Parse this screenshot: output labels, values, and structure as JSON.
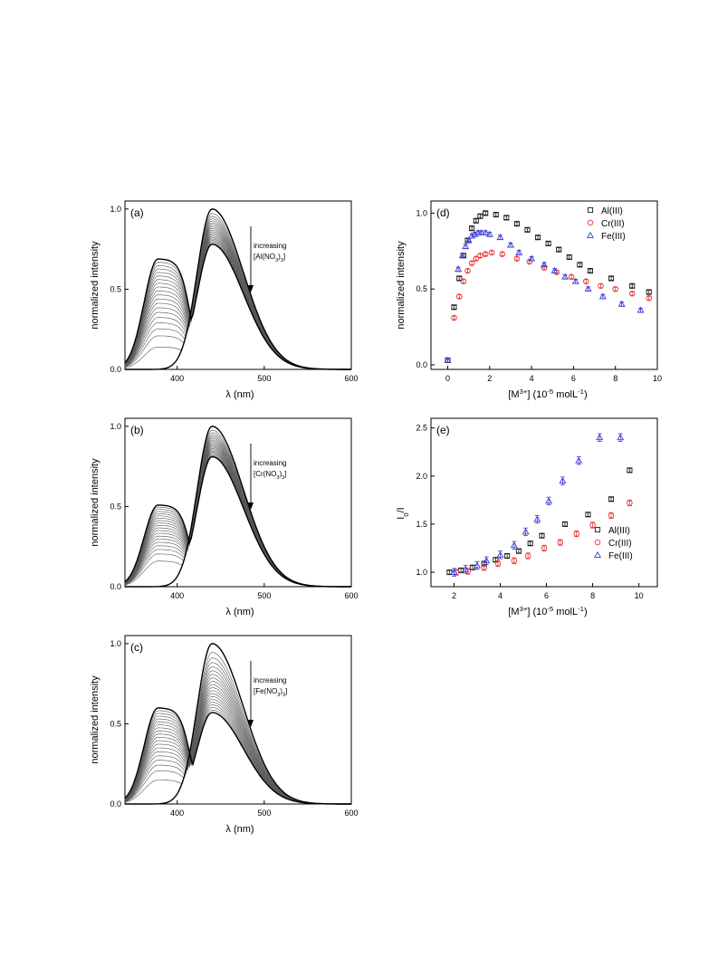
{
  "chart_data": [
    {
      "id": "a",
      "type": "line",
      "panel_label": "(a)",
      "xlabel": "λ (nm)",
      "ylabel": "normalized intensity",
      "xlim": [
        340,
        600
      ],
      "ylim": [
        0,
        1.05
      ],
      "xticks": [
        400,
        500,
        600
      ],
      "yticks": [
        0.0,
        0.5,
        1.0
      ],
      "xtick_labels": [
        "400",
        "500",
        "600"
      ],
      "ytick_labels": [
        "0.0",
        "0.5",
        "1.0"
      ],
      "annotation_line1": "increasing",
      "annotation_line2": "[Al(NO3)3]",
      "annotation_salt": "Al",
      "family": {
        "count": 20,
        "first_shoulder": 0.14,
        "last_shoulder": 0.69,
        "first_peak": 1.0,
        "last_peak": 0.78,
        "crossover_nm": 428
      },
      "bold_curves": [
        {
          "shoulder": 0.0,
          "peak": 1.0
        },
        {
          "shoulder": 0.69,
          "peak": 0.78
        }
      ]
    },
    {
      "id": "b",
      "type": "line",
      "panel_label": "(b)",
      "xlabel": "λ (nm)",
      "ylabel": "normalized intensity",
      "xlim": [
        340,
        600
      ],
      "ylim": [
        0,
        1.05
      ],
      "xticks": [
        400,
        500,
        600
      ],
      "yticks": [
        0.0,
        0.5,
        1.0
      ],
      "xtick_labels": [
        "400",
        "500",
        "600"
      ],
      "ytick_labels": [
        "0.0",
        "0.5",
        "1.0"
      ],
      "annotation_line1": "increasing",
      "annotation_line2": "[Cr(NO3)3]",
      "annotation_salt": "Cr",
      "family": {
        "count": 20,
        "first_shoulder": 0.16,
        "last_shoulder": 0.51,
        "first_peak": 1.0,
        "last_peak": 0.81,
        "crossover_nm": 428
      },
      "bold_curves": [
        {
          "shoulder": 0.0,
          "peak": 1.0
        },
        {
          "shoulder": 0.51,
          "peak": 0.81
        }
      ]
    },
    {
      "id": "c",
      "type": "line",
      "panel_label": "(c)",
      "xlabel": "λ (nm)",
      "ylabel": "normalized intensity",
      "xlim": [
        340,
        600
      ],
      "ylim": [
        0,
        1.05
      ],
      "xticks": [
        400,
        500,
        600
      ],
      "yticks": [
        0.0,
        0.5,
        1.0
      ],
      "xtick_labels": [
        "400",
        "500",
        "600"
      ],
      "ytick_labels": [
        "0.0",
        "0.5",
        "1.0"
      ],
      "annotation_line1": "increasing",
      "annotation_line2": "[Fe(NO3)3]",
      "annotation_salt": "Fe",
      "family": {
        "count": 20,
        "first_shoulder": 0.15,
        "last_shoulder": 0.6,
        "first_peak": 1.0,
        "last_peak": 0.57,
        "crossover_nm": 430
      },
      "bold_curves": [
        {
          "shoulder": 0.0,
          "peak": 1.0
        },
        {
          "shoulder": 0.6,
          "peak": 0.57
        }
      ]
    },
    {
      "id": "d",
      "type": "scatter",
      "panel_label": "(d)",
      "xlabel": "[M3+] (10-5 molL-1)",
      "ylabel": "normalized intensity",
      "xlim": [
        -0.8,
        10
      ],
      "ylim": [
        -0.03,
        1.08
      ],
      "xticks": [
        0,
        2,
        4,
        6,
        8,
        10
      ],
      "yticks": [
        0.0,
        0.5,
        1.0
      ],
      "xtick_labels": [
        "0",
        "2",
        "4",
        "6",
        "8",
        "10"
      ],
      "ytick_labels": [
        "0.0",
        "0.5",
        "1.0"
      ],
      "legend_position": "top-right",
      "series": [
        {
          "name": "Al(III)",
          "marker": "square",
          "color": "#1a1a1a",
          "err": 0.012,
          "x": [
            0,
            0.3,
            0.55,
            0.75,
            0.95,
            1.15,
            1.35,
            1.55,
            1.8,
            2.3,
            2.8,
            3.3,
            3.8,
            4.3,
            4.8,
            5.3,
            5.8,
            6.3,
            6.8,
            7.8,
            8.8,
            9.6
          ],
          "y": [
            0.03,
            0.38,
            0.57,
            0.72,
            0.82,
            0.9,
            0.95,
            0.98,
            1.0,
            0.99,
            0.97,
            0.93,
            0.89,
            0.84,
            0.8,
            0.76,
            0.71,
            0.66,
            0.62,
            0.57,
            0.52,
            0.48
          ]
        },
        {
          "name": "Cr(III)",
          "marker": "circle",
          "color": "#e8343a",
          "err": 0.012,
          "x": [
            0,
            0.3,
            0.55,
            0.75,
            0.95,
            1.15,
            1.35,
            1.55,
            1.8,
            2.1,
            2.6,
            3.3,
            3.9,
            4.6,
            5.2,
            5.9,
            6.6,
            7.3,
            8.0,
            8.8,
            9.6
          ],
          "y": [
            0.03,
            0.31,
            0.45,
            0.55,
            0.62,
            0.67,
            0.7,
            0.72,
            0.73,
            0.74,
            0.73,
            0.7,
            0.68,
            0.64,
            0.61,
            0.58,
            0.55,
            0.52,
            0.5,
            0.47,
            0.44
          ]
        },
        {
          "name": "Fe(III)",
          "marker": "triangle",
          "color": "#3a3ad6",
          "err": 0.014,
          "x": [
            0,
            0.5,
            0.7,
            0.85,
            1.0,
            1.15,
            1.3,
            1.45,
            1.6,
            1.8,
            2.0,
            2.5,
            3.0,
            3.4,
            4.0,
            4.6,
            5.1,
            5.6,
            6.1,
            6.7,
            7.4,
            8.3,
            9.2
          ],
          "y": [
            0.03,
            0.63,
            0.72,
            0.78,
            0.82,
            0.85,
            0.86,
            0.87,
            0.87,
            0.87,
            0.86,
            0.84,
            0.79,
            0.74,
            0.7,
            0.66,
            0.62,
            0.58,
            0.55,
            0.5,
            0.45,
            0.4,
            0.36
          ]
        }
      ]
    },
    {
      "id": "e",
      "type": "scatter",
      "panel_label": "(e)",
      "xlabel": "[M3+] (10-5 molL-1)",
      "ylabel": "I0/I",
      "xlim": [
        1,
        10.8
      ],
      "ylim": [
        0.85,
        2.6
      ],
      "xticks": [
        2,
        4,
        6,
        8,
        10
      ],
      "yticks": [
        1.0,
        1.5,
        2.0,
        2.5
      ],
      "xtick_labels": [
        "2",
        "4",
        "6",
        "8",
        "10"
      ],
      "ytick_labels": [
        "1.0",
        "1.5",
        "2.0",
        "2.5"
      ],
      "legend_position": "bottom-right",
      "series": [
        {
          "name": "Al(III)",
          "marker": "square",
          "color": "#1a1a1a",
          "err": 0.02,
          "x": [
            1.8,
            2.3,
            2.8,
            3.3,
            3.8,
            4.3,
            4.8,
            5.3,
            5.8,
            6.8,
            7.8,
            8.8,
            9.6
          ],
          "y": [
            1.0,
            1.02,
            1.05,
            1.09,
            1.13,
            1.17,
            1.22,
            1.3,
            1.38,
            1.5,
            1.6,
            1.76,
            2.06
          ]
        },
        {
          "name": "Cr(III)",
          "marker": "circle",
          "color": "#e8343a",
          "err": 0.03,
          "x": [
            2.1,
            2.6,
            3.3,
            3.9,
            4.6,
            5.2,
            5.9,
            6.6,
            7.3,
            8.0,
            8.8,
            9.6
          ],
          "y": [
            1.0,
            1.01,
            1.05,
            1.09,
            1.12,
            1.17,
            1.25,
            1.31,
            1.4,
            1.49,
            1.59,
            1.72
          ]
        },
        {
          "name": "Fe(III)",
          "marker": "triangle",
          "color": "#3a3ad6",
          "err": 0.04,
          "x": [
            2.0,
            2.5,
            3.0,
            3.4,
            4.0,
            4.6,
            5.1,
            5.6,
            6.1,
            6.7,
            7.4,
            8.3,
            9.2
          ],
          "y": [
            1.0,
            1.03,
            1.07,
            1.12,
            1.18,
            1.28,
            1.42,
            1.55,
            1.74,
            1.95,
            2.16,
            2.4,
            2.4
          ]
        }
      ]
    }
  ]
}
